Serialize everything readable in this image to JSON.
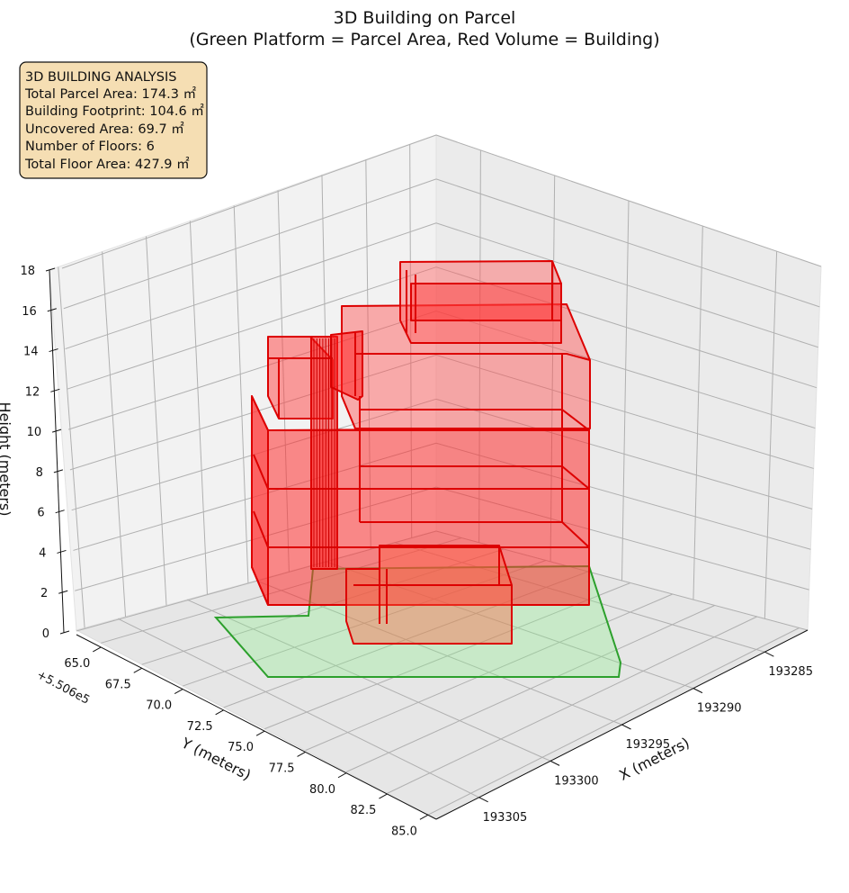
{
  "chart_data": {
    "type": "3d-polygons",
    "title": "3D Building on Parcel",
    "subtitle": "(Green Platform = Parcel Area, Red Volume = Building)",
    "xlabel": "X (meters)",
    "ylabel": "Y (meters)",
    "zlabel": "Height (meters)",
    "y_offset_label": "+5.506e5",
    "xlim": [
      193282,
      193308
    ],
    "ylim": [
      550663.5,
      550685.5
    ],
    "zlim": [
      0,
      18
    ],
    "x_ticks": [
      "193285",
      "193290",
      "193295",
      "193300",
      "193305"
    ],
    "y_ticks": [
      "65.0",
      "67.5",
      "70.0",
      "72.5",
      "75.0",
      "77.5",
      "80.0",
      "82.5",
      "85.0"
    ],
    "z_ticks": [
      "0",
      "2",
      "4",
      "6",
      "8",
      "10",
      "12",
      "14",
      "16",
      "18"
    ],
    "grid": true,
    "series": [
      {
        "name": "Parcel Area",
        "color": "#2ca02c",
        "fill": "#90ee90"
      },
      {
        "name": "Building",
        "color": "#ff0000",
        "edge": "#cc0000"
      }
    ],
    "info_box": {
      "title": "3D BUILDING ANALYSIS",
      "lines": [
        "Total Parcel Area: 174.3 ㎡",
        "Building Footprint: 104.6 ㎡",
        "Uncovered Area: 69.7 ㎡",
        "Number of Floors: 6",
        "Total Floor Area: 427.9 ㎡"
      ],
      "background": "#f5deb3"
    }
  }
}
